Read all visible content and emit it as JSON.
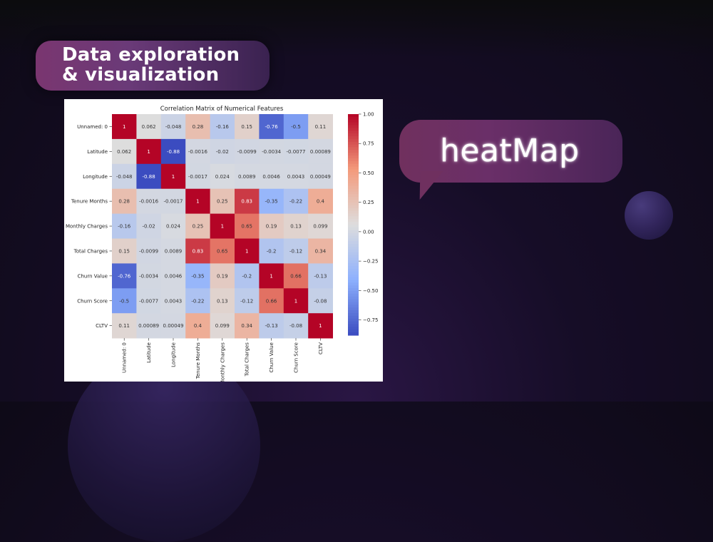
{
  "slide": {
    "title_line1": "Data exploration",
    "title_line2": "& visualization",
    "callout": "heatMap"
  },
  "colors": {
    "title_bubble": "#6e3572",
    "callout_bubble": "#6a2f66",
    "text": "#ffffff",
    "colormap": "coolwarm",
    "cold": "#3b4cc0",
    "neutral": "#dddddd",
    "hot": "#b40426"
  },
  "chart_data": {
    "type": "heatmap",
    "title": "Correlation Matrix of Numerical Features",
    "rows": [
      "Unnamed: 0",
      "Latitude",
      "Longitude",
      "Tenure Months",
      "Monthly Charges",
      "Total Charges",
      "Churn Value",
      "Churn Score",
      "CLTV"
    ],
    "columns": [
      "Unnamed: 0",
      "Latitude",
      "Longitude",
      "Tenure Months",
      "Monthly Charges",
      "Total Charges",
      "Churn Value",
      "Churn Score",
      "CLTV"
    ],
    "values": [
      [
        1,
        0.062,
        -0.048,
        0.28,
        -0.16,
        0.15,
        -0.76,
        -0.5,
        0.11
      ],
      [
        0.062,
        1,
        -0.88,
        -0.0016,
        -0.02,
        -0.0099,
        -0.0034,
        -0.0077,
        0.00089
      ],
      [
        -0.048,
        -0.88,
        1,
        -0.0017,
        0.024,
        0.0089,
        0.0046,
        0.0043,
        0.00049
      ],
      [
        0.28,
        -0.0016,
        -0.0017,
        1,
        0.25,
        0.83,
        -0.35,
        -0.22,
        0.4
      ],
      [
        -0.16,
        -0.02,
        0.024,
        0.25,
        1,
        0.65,
        0.19,
        0.13,
        0.099
      ],
      [
        0.15,
        -0.0099,
        0.0089,
        0.83,
        0.65,
        1,
        -0.2,
        -0.12,
        0.34
      ],
      [
        -0.76,
        -0.0034,
        0.0046,
        -0.35,
        0.19,
        -0.2,
        1,
        0.66,
        -0.13
      ],
      [
        -0.5,
        -0.0077,
        0.0043,
        -0.22,
        0.13,
        -0.12,
        0.66,
        1,
        -0.08
      ],
      [
        0.11,
        0.00089,
        0.00049,
        0.4,
        0.099,
        0.34,
        -0.13,
        -0.08,
        1
      ]
    ],
    "colorbar": {
      "range": [
        -0.88,
        1
      ],
      "ticks": [
        1.0,
        0.75,
        0.5,
        0.25,
        0.0,
        -0.25,
        -0.5,
        -0.75
      ],
      "tick_labels": [
        "1.00",
        "0.75",
        "0.50",
        "0.25",
        "0.00",
        "−0.25",
        "−0.50",
        "−0.75"
      ]
    }
  }
}
